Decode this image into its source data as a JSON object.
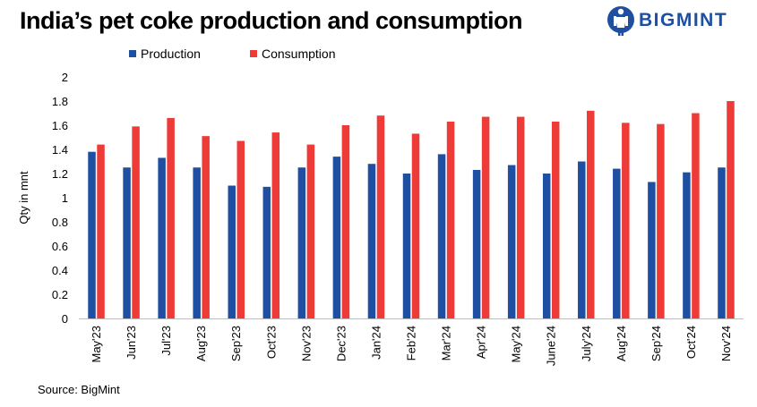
{
  "title": "India’s pet coke production and consumption",
  "logo": {
    "text": "BIGMINT",
    "icon": "bigmint-logo-icon"
  },
  "source": "Source: BigMint",
  "colors": {
    "production": "#1f4fa3",
    "consumption": "#ee3b37",
    "logo": "#1e4fa0"
  },
  "chart_data": {
    "type": "bar",
    "title": "",
    "xlabel": "",
    "ylabel": "Qty in mnt",
    "ylim": [
      0,
      2
    ],
    "yticks": [
      "0",
      "0.2",
      "0.4",
      "0.6",
      "0.8",
      "1",
      "1.2",
      "1.4",
      "1.6",
      "1.8",
      "2"
    ],
    "grid": false,
    "legend": "top",
    "categories": [
      "May'23",
      "Jun'23",
      "Jul'23",
      "Aug'23",
      "Sep'23",
      "Oct'23",
      "Nov'23",
      "Dec'23",
      "Jan'24",
      "Feb'24",
      "Mar'24",
      "Apr'24",
      "May'24",
      "June'24",
      "July'24",
      "Aug'24",
      "Sep'24",
      "Oct'24",
      "Nov'24"
    ],
    "series": [
      {
        "name": "Production",
        "color": "#1f4fa3",
        "values": [
          1.38,
          1.25,
          1.33,
          1.25,
          1.1,
          1.09,
          1.25,
          1.34,
          1.28,
          1.2,
          1.36,
          1.23,
          1.27,
          1.2,
          1.3,
          1.24,
          1.13,
          1.21,
          1.25
        ]
      },
      {
        "name": "Consumption",
        "color": "#ee3b37",
        "values": [
          1.44,
          1.59,
          1.66,
          1.51,
          1.47,
          1.54,
          1.44,
          1.6,
          1.68,
          1.53,
          1.63,
          1.67,
          1.67,
          1.63,
          1.72,
          1.62,
          1.61,
          1.7,
          1.8
        ]
      }
    ]
  }
}
